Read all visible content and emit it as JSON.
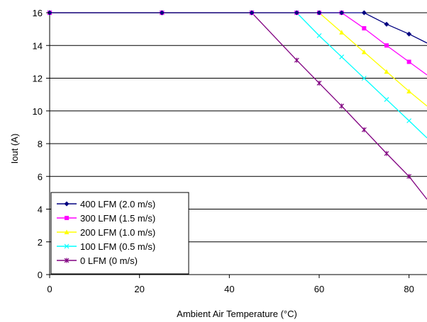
{
  "chart_data": {
    "type": "line",
    "title": "",
    "xlabel": "Ambient Air Temperature (°C)",
    "ylabel": "Iout (A)",
    "xlim": [
      0,
      84
    ],
    "ylim": [
      0,
      16
    ],
    "x_ticks": [
      0,
      20,
      40,
      60,
      80
    ],
    "y_ticks": [
      0,
      2,
      4,
      6,
      8,
      10,
      12,
      14,
      16
    ],
    "grid": "horizontal",
    "legend_position": "bottom-left",
    "series": [
      {
        "name": "400 LFM (2.0 m/s)",
        "color": "#000080",
        "marker": "diamond",
        "points": [
          [
            0,
            16
          ],
          [
            25,
            16
          ],
          [
            45,
            16
          ],
          [
            55,
            16
          ],
          [
            60,
            16
          ],
          [
            65,
            16
          ],
          [
            70,
            16
          ],
          [
            75,
            15.3
          ],
          [
            80,
            14.7
          ],
          [
            84,
            14.15
          ]
        ]
      },
      {
        "name": "300 LFM (1.5 m/s)",
        "color": "#ff00ff",
        "marker": "square",
        "points": [
          [
            0,
            16
          ],
          [
            25,
            16
          ],
          [
            45,
            16
          ],
          [
            55,
            16
          ],
          [
            60,
            16
          ],
          [
            65,
            16
          ],
          [
            70,
            15.05
          ],
          [
            75,
            14.0
          ],
          [
            80,
            13.0
          ],
          [
            84,
            12.2
          ]
        ]
      },
      {
        "name": "200 LFM (1.0 m/s)",
        "color": "#ffff00",
        "marker": "triangle",
        "points": [
          [
            0,
            16
          ],
          [
            25,
            16
          ],
          [
            45,
            16
          ],
          [
            55,
            16
          ],
          [
            60,
            16
          ],
          [
            65,
            14.8
          ],
          [
            70,
            13.6
          ],
          [
            75,
            12.4
          ],
          [
            80,
            11.2
          ],
          [
            84,
            10.3
          ]
        ]
      },
      {
        "name": "100 LFM (0.5 m/s)",
        "color": "#00ffff",
        "marker": "x",
        "points": [
          [
            0,
            16
          ],
          [
            25,
            16
          ],
          [
            45,
            16
          ],
          [
            55,
            16
          ],
          [
            60,
            14.6
          ],
          [
            65,
            13.3
          ],
          [
            70,
            12.0
          ],
          [
            75,
            10.7
          ],
          [
            80,
            9.4
          ],
          [
            84,
            8.35
          ]
        ]
      },
      {
        "name": "0 LFM (0 m/s)",
        "color": "#800080",
        "marker": "star",
        "points": [
          [
            0,
            16
          ],
          [
            25,
            16
          ],
          [
            45,
            16
          ],
          [
            55,
            13.1
          ],
          [
            60,
            11.7
          ],
          [
            65,
            10.3
          ],
          [
            70,
            8.85
          ],
          [
            75,
            7.4
          ],
          [
            80,
            6.0
          ],
          [
            84,
            4.6
          ]
        ]
      }
    ]
  }
}
